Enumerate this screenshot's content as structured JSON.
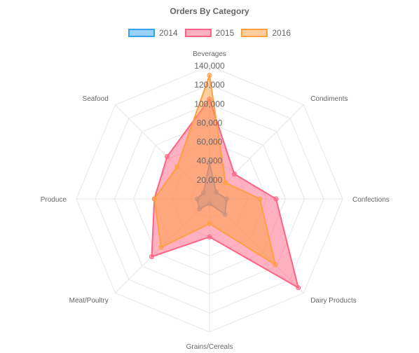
{
  "chart_data": {
    "type": "radar",
    "title": "Orders By Category",
    "categories": [
      "Beverages",
      "Condiments",
      "Confections",
      "Dairy Products",
      "Grains/Cereals",
      "Meat/Poultry",
      "Produce",
      "Seafood"
    ],
    "r_ticks": [
      "20,000",
      "40,000",
      "60,000",
      "80,000",
      "100,000",
      "120,000",
      "140,000"
    ],
    "r_range": [
      0,
      140000
    ],
    "legend_position": "top",
    "grid": true,
    "series": [
      {
        "name": "2014",
        "color": "#36a2eb",
        "values": [
          38000,
          10000,
          18000,
          23000,
          5000,
          15000,
          13000,
          9000
        ]
      },
      {
        "name": "2015",
        "color": "#ff6384",
        "values": [
          105000,
          37000,
          70000,
          132000,
          40000,
          86000,
          58000,
          63000
        ]
      },
      {
        "name": "2016",
        "color": "#ff9f40",
        "values": [
          130000,
          24000,
          53000,
          98000,
          26000,
          72000,
          58000,
          48000
        ]
      }
    ]
  }
}
